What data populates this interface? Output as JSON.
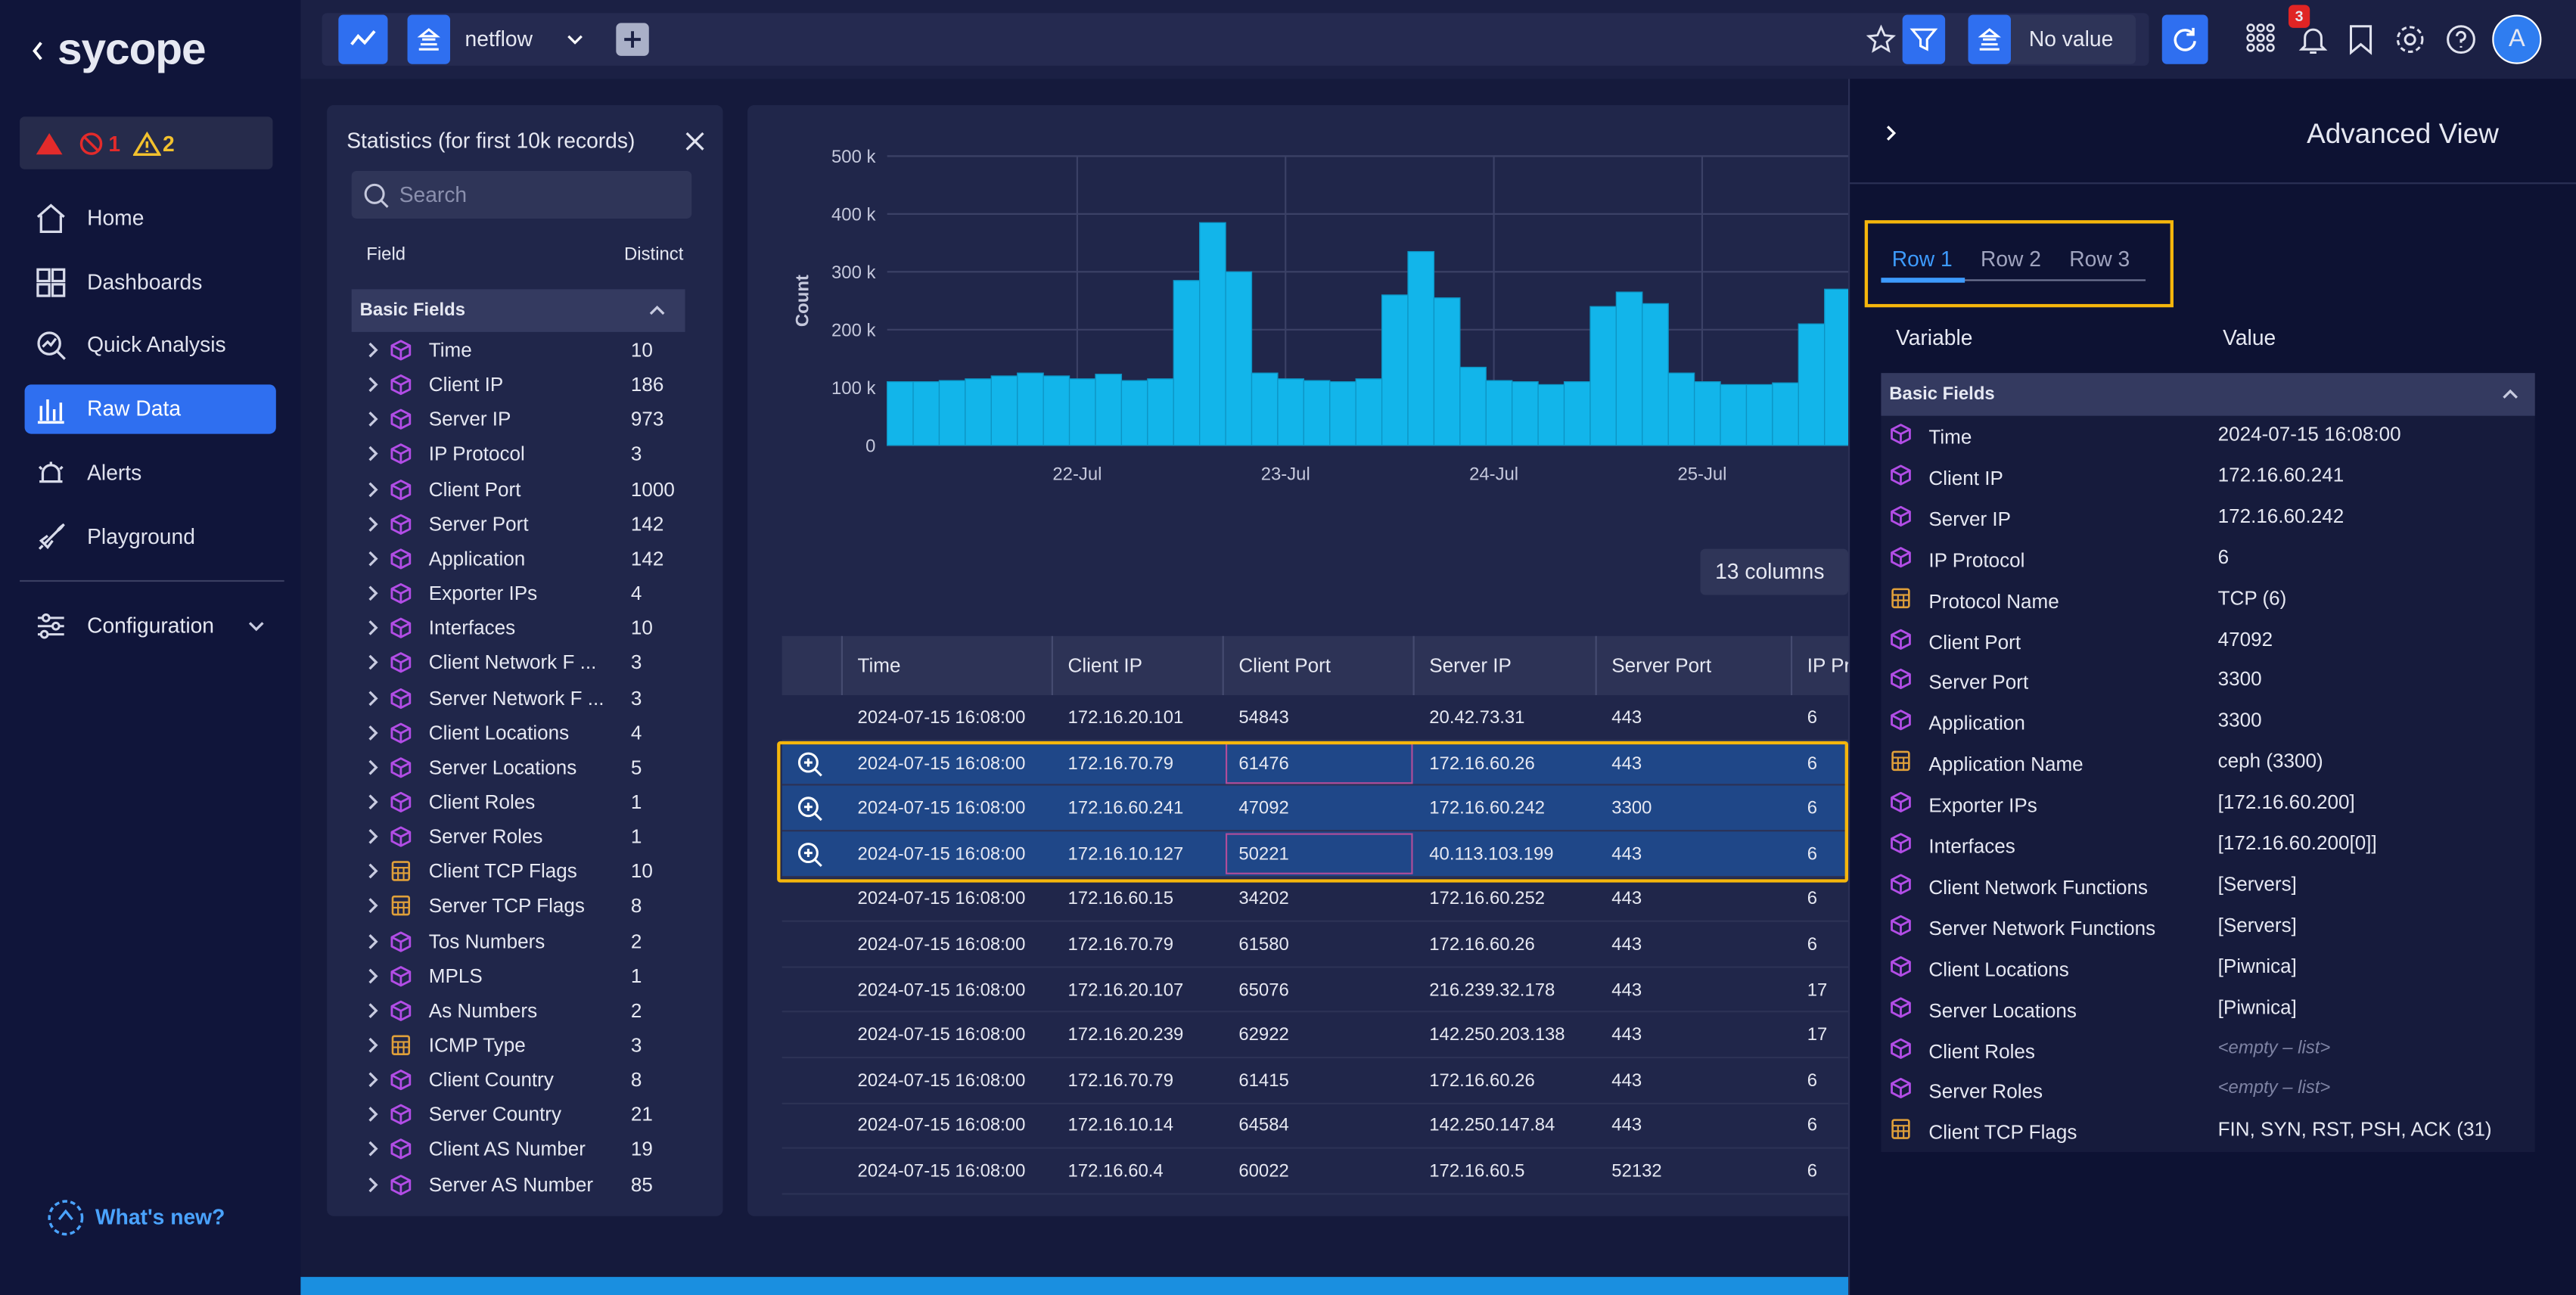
{
  "topbar": {
    "source": "netflow",
    "filter": "No value",
    "notifications": "3",
    "avatar": "A"
  },
  "sidebar": {
    "logo": "sycope",
    "alert_counts": [
      "1",
      "2"
    ],
    "nav": [
      "Home",
      "Dashboards",
      "Quick Analysis",
      "Raw Data",
      "Alerts",
      "Playground"
    ],
    "configuration": "Configuration",
    "whats_new": "What's new?"
  },
  "statistics": {
    "title": "Statistics (for first 10k records)",
    "search": "Search",
    "headers": [
      "Field",
      "Distinct"
    ],
    "section": "Basic Fields",
    "rows": [
      {
        "field": "Time",
        "distinct": 10,
        "icon": "cube"
      },
      {
        "field": "Client IP",
        "distinct": 186,
        "icon": "cube"
      },
      {
        "field": "Server IP",
        "distinct": 973,
        "icon": "cube"
      },
      {
        "field": "IP Protocol",
        "distinct": 3,
        "icon": "cube"
      },
      {
        "field": "Client Port",
        "distinct": 1000,
        "icon": "cube"
      },
      {
        "field": "Server Port",
        "distinct": 142,
        "icon": "cube"
      },
      {
        "field": "Application",
        "distinct": 142,
        "icon": "cube"
      },
      {
        "field": "Exporter IPs",
        "distinct": 4,
        "icon": "cube"
      },
      {
        "field": "Interfaces",
        "distinct": 10,
        "icon": "cube"
      },
      {
        "field": "Client Network F ...",
        "distinct": 3,
        "icon": "cube"
      },
      {
        "field": "Server Network F ...",
        "distinct": 3,
        "icon": "cube"
      },
      {
        "field": "Client Locations",
        "distinct": 4,
        "icon": "cube"
      },
      {
        "field": "Server Locations",
        "distinct": 5,
        "icon": "cube"
      },
      {
        "field": "Client Roles",
        "distinct": 1,
        "icon": "cube"
      },
      {
        "field": "Server Roles",
        "distinct": 1,
        "icon": "cube"
      },
      {
        "field": "Client TCP Flags",
        "distinct": 10,
        "icon": "calc"
      },
      {
        "field": "Server TCP Flags",
        "distinct": 8,
        "icon": "calc"
      },
      {
        "field": "Tos Numbers",
        "distinct": 2,
        "icon": "cube"
      },
      {
        "field": "MPLS",
        "distinct": 1,
        "icon": "cube"
      },
      {
        "field": "As Numbers",
        "distinct": 2,
        "icon": "cube"
      },
      {
        "field": "ICMP Type",
        "distinct": 3,
        "icon": "calc"
      },
      {
        "field": "Client Country",
        "distinct": 8,
        "icon": "cube"
      },
      {
        "field": "Server Country",
        "distinct": 21,
        "icon": "cube"
      },
      {
        "field": "Client AS Number",
        "distinct": 19,
        "icon": "cube"
      },
      {
        "field": "Server AS Number",
        "distinct": 85,
        "icon": "cube"
      }
    ]
  },
  "chart_data": {
    "type": "bar",
    "y_label": "Count",
    "color": "#12b5ea",
    "values": [
      110000,
      110000,
      112000,
      115000,
      120000,
      125000,
      120000,
      115000,
      123000,
      112000,
      115000,
      285000,
      385000,
      300000,
      125000,
      115000,
      112000,
      110000,
      115000,
      260000,
      335000,
      255000,
      135000,
      112000,
      110000,
      105000,
      110000,
      240000,
      265000,
      245000,
      125000,
      110000,
      105000,
      105000,
      108000,
      210000,
      270000
    ],
    "xticks": [
      "22-Jul",
      "23-Jul",
      "24-Jul",
      "25-Jul"
    ],
    "ylim": [
      0,
      500000
    ],
    "yticks": [
      0,
      {
        "value": 100000,
        "label": "100 k"
      },
      {
        "value": 200000,
        "label": "200 k"
      },
      {
        "value": 300000,
        "label": "300 k"
      },
      {
        "value": 400000,
        "label": "400 k"
      },
      {
        "value": 500000,
        "label": "500 k"
      }
    ],
    "grid": true
  },
  "columns_button": "13 columns",
  "table": {
    "columns": [
      "Time",
      "Client IP",
      "Client Port",
      "Server IP",
      "Server Port",
      "IP Pr"
    ],
    "rows": [
      [
        "2024-07-15 16:08:00",
        "172.16.20.101",
        "54843",
        "20.42.73.31",
        "443",
        "6"
      ],
      [
        "2024-07-15 16:08:00",
        "172.16.70.79",
        "61476",
        "172.16.60.26",
        "443",
        "6"
      ],
      [
        "2024-07-15 16:08:00",
        "172.16.60.241",
        "47092",
        "172.16.60.242",
        "3300",
        "6"
      ],
      [
        "2024-07-15 16:08:00",
        "172.16.10.127",
        "50221",
        "40.113.103.199",
        "443",
        "6"
      ],
      [
        "2024-07-15 16:08:00",
        "172.16.60.15",
        "34202",
        "172.16.60.252",
        "443",
        "6"
      ],
      [
        "2024-07-15 16:08:00",
        "172.16.70.79",
        "61580",
        "172.16.60.26",
        "443",
        "6"
      ],
      [
        "2024-07-15 16:08:00",
        "172.16.20.107",
        "65076",
        "216.239.32.178",
        "443",
        "17"
      ],
      [
        "2024-07-15 16:08:00",
        "172.16.20.239",
        "62922",
        "142.250.203.138",
        "443",
        "17"
      ],
      [
        "2024-07-15 16:08:00",
        "172.16.70.79",
        "61415",
        "172.16.60.26",
        "443",
        "6"
      ],
      [
        "2024-07-15 16:08:00",
        "172.16.10.14",
        "64584",
        "142.250.147.84",
        "443",
        "6"
      ],
      [
        "2024-07-15 16:08:00",
        "172.16.60.4",
        "60022",
        "172.16.60.5",
        "52132",
        "6"
      ]
    ]
  },
  "advanced_view": {
    "title": "Advanced View",
    "tabs": [
      "Row 1",
      "Row 2",
      "Row 3"
    ],
    "headers": [
      "Variable",
      "Value"
    ],
    "section": "Basic Fields",
    "rows": [
      {
        "variable": "Time",
        "value": "2024-07-15 16:08:00",
        "icon": "cube"
      },
      {
        "variable": "Client IP",
        "value": "172.16.60.241",
        "icon": "cube"
      },
      {
        "variable": "Server IP",
        "value": "172.16.60.242",
        "icon": "cube"
      },
      {
        "variable": "IP Protocol",
        "value": "6",
        "icon": "cube"
      },
      {
        "variable": "Protocol Name",
        "value": "TCP (6)",
        "icon": "calc"
      },
      {
        "variable": "Client Port",
        "value": "47092",
        "icon": "cube"
      },
      {
        "variable": "Server Port",
        "value": "3300",
        "icon": "cube"
      },
      {
        "variable": "Application",
        "value": "3300",
        "icon": "cube"
      },
      {
        "variable": "Application Name",
        "value": "ceph (3300)",
        "icon": "calc"
      },
      {
        "variable": "Exporter IPs",
        "value": "[172.16.60.200]",
        "icon": "cube"
      },
      {
        "variable": "Interfaces",
        "value": "[172.16.60.200[0]]",
        "icon": "cube"
      },
      {
        "variable": "Client Network Functions",
        "value": "[Servers]",
        "icon": "cube"
      },
      {
        "variable": "Server Network Functions",
        "value": "[Servers]",
        "icon": "cube"
      },
      {
        "variable": "Client Locations",
        "value": "[Piwnica]",
        "icon": "cube"
      },
      {
        "variable": "Server Locations",
        "value": "[Piwnica]",
        "icon": "cube"
      },
      {
        "variable": "Client Roles",
        "value": "<empty – list>",
        "icon": "cube"
      },
      {
        "variable": "Server Roles",
        "value": "<empty – list>",
        "icon": "cube"
      },
      {
        "variable": "Client TCP Flags",
        "value": "FIN, SYN, RST, PSH, ACK (31)",
        "icon": "calc"
      }
    ]
  }
}
